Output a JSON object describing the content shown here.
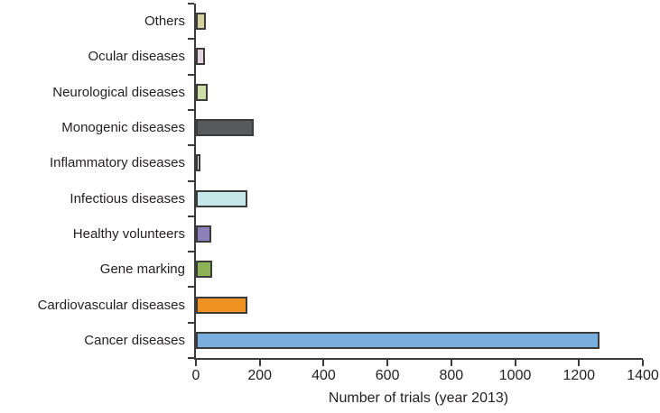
{
  "figure": {
    "background": "#ffffff",
    "axis_color": "#3b3b3c",
    "text_color": "#231f20"
  },
  "chart_data": {
    "type": "bar",
    "orientation": "horizontal",
    "title": "",
    "xlabel": "Number of trials (year 2013)",
    "ylabel": "",
    "xlim": [
      0,
      1400
    ],
    "x_ticks": [
      0,
      200,
      400,
      600,
      800,
      1000,
      1200,
      1400
    ],
    "grid": false,
    "legend": false,
    "categories": [
      "Others",
      "Ocular diseases",
      "Neurological diseases",
      "Monogenic diseases",
      "Inflammatory diseases",
      "Infectious diseases",
      "Healthy volunteers",
      "Gene marking",
      "Cardiovascular diseases",
      "Cancer diseases"
    ],
    "values": [
      30,
      29,
      36,
      180,
      15,
      162,
      49,
      50,
      160,
      1265
    ],
    "bar_colors": [
      "#d6d2a0",
      "#e3d4e0",
      "#cfdda6",
      "#58595b",
      "#e8eef4",
      "#c5e7ea",
      "#8b80b8",
      "#8eb356",
      "#f09221",
      "#79aede"
    ],
    "bar_border_color": "#3b3b3c"
  }
}
